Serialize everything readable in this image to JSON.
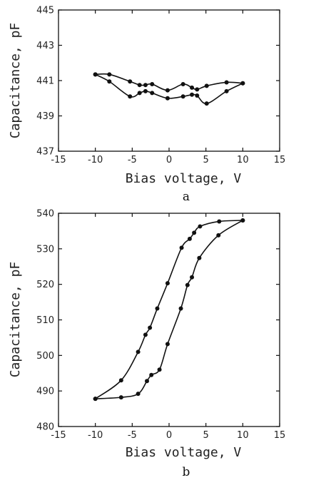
{
  "chart_data": [
    {
      "type": "line",
      "panel_label": "a",
      "xlabel": "Bias voltage, V",
      "ylabel": "Capacitance, pF",
      "xlim": [
        -15,
        15
      ],
      "ylim": [
        437,
        445
      ],
      "xticks": [
        -15,
        -10,
        -5,
        0,
        5,
        10,
        15
      ],
      "yticks": [
        437,
        439,
        441,
        443,
        445
      ],
      "grid": false,
      "series": [
        {
          "points": [
            [
              -10,
              441.35
            ],
            [
              -8.1,
              441.35
            ],
            [
              -5.3,
              440.95
            ],
            [
              -4.0,
              440.75
            ],
            [
              -3.2,
              440.75
            ],
            [
              -2.3,
              440.8
            ],
            [
              -0.2,
              440.45
            ],
            [
              1.9,
              440.8
            ],
            [
              3.1,
              440.6
            ],
            [
              3.8,
              440.5
            ],
            [
              5.1,
              440.7
            ],
            [
              7.8,
              440.9
            ],
            [
              10,
              440.85
            ]
          ]
        },
        {
          "points": [
            [
              -10,
              441.35
            ],
            [
              -8.1,
              440.95
            ],
            [
              -5.3,
              440.1
            ],
            [
              -4.0,
              440.3
            ],
            [
              -3.2,
              440.4
            ],
            [
              -2.3,
              440.3
            ],
            [
              -0.2,
              440.0
            ],
            [
              1.9,
              440.1
            ],
            [
              3.1,
              440.2
            ],
            [
              3.8,
              440.15
            ],
            [
              5.1,
              439.7
            ],
            [
              7.8,
              440.4
            ],
            [
              10,
              440.85
            ]
          ]
        }
      ]
    },
    {
      "type": "line",
      "panel_label": "b",
      "xlabel": "Bias voltage, V",
      "ylabel": "Capacitance, pF",
      "xlim": [
        -15,
        15
      ],
      "ylim": [
        480,
        540
      ],
      "xticks": [
        -15,
        -10,
        -5,
        0,
        5,
        10,
        15
      ],
      "yticks": [
        480,
        490,
        500,
        510,
        520,
        530,
        540
      ],
      "grid": false,
      "series": [
        {
          "points": [
            [
              -10,
              487.8
            ],
            [
              -6.5,
              493.0
            ],
            [
              -4.2,
              501.0
            ],
            [
              -3.2,
              505.8
            ],
            [
              -2.6,
              507.8
            ],
            [
              -1.6,
              513.2
            ],
            [
              -0.2,
              520.3
            ],
            [
              1.7,
              530.3
            ],
            [
              2.8,
              532.8
            ],
            [
              3.4,
              534.5
            ],
            [
              4.2,
              536.3
            ],
            [
              6.8,
              537.7
            ],
            [
              10,
              538.0
            ]
          ]
        },
        {
          "points": [
            [
              -10,
              487.8
            ],
            [
              -6.5,
              488.2
            ],
            [
              -4.2,
              489.2
            ],
            [
              -3.0,
              492.8
            ],
            [
              -2.4,
              494.5
            ],
            [
              -1.3,
              496.0
            ],
            [
              -0.2,
              503.2
            ],
            [
              1.6,
              513.2
            ],
            [
              2.5,
              519.8
            ],
            [
              3.1,
              522.0
            ],
            [
              4.1,
              527.4
            ],
            [
              6.7,
              533.8
            ],
            [
              10,
              538.0
            ]
          ]
        }
      ]
    }
  ]
}
